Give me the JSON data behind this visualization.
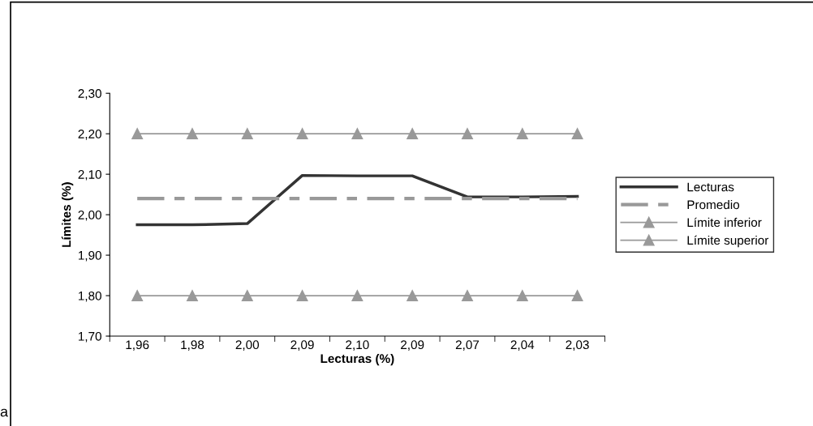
{
  "chart_data": {
    "type": "line",
    "xlabel": "Lecturas (%)",
    "ylabel": "Límites (%)",
    "categories": [
      "1,96",
      "1,98",
      "2,00",
      "2,09",
      "2,10",
      "2,09",
      "2,07",
      "2,04",
      "2,03"
    ],
    "series": [
      {
        "name": "Lecturas",
        "color": "#333333",
        "line_style": "solid",
        "marker": "none",
        "values": [
          1.975,
          1.975,
          1.978,
          2.097,
          2.096,
          2.096,
          2.044,
          2.044,
          2.045
        ]
      },
      {
        "name": "Promedio",
        "color": "#999999",
        "line_style": "dashed",
        "marker": "none",
        "values": [
          2.04,
          2.04,
          2.04,
          2.04,
          2.04,
          2.04,
          2.04,
          2.04,
          2.04
        ]
      },
      {
        "name": "Límite inferior",
        "color": "#999999",
        "line_style": "solid",
        "marker": "triangle",
        "values": [
          1.8,
          1.8,
          1.8,
          1.8,
          1.8,
          1.8,
          1.8,
          1.8,
          1.8
        ]
      },
      {
        "name": "Límite superior",
        "color": "#999999",
        "line_style": "solid",
        "marker": "triangle",
        "values": [
          2.2,
          2.2,
          2.2,
          2.2,
          2.2,
          2.2,
          2.2,
          2.2,
          2.2
        ]
      }
    ],
    "ylim": [
      1.7,
      2.3
    ],
    "yticks": [
      {
        "value": 1.7,
        "label": "1,70"
      },
      {
        "value": 1.8,
        "label": "1,80"
      },
      {
        "value": 1.9,
        "label": "1,90"
      },
      {
        "value": 2.0,
        "label": "2,00"
      },
      {
        "value": 2.1,
        "label": "2,10"
      },
      {
        "value": 2.2,
        "label": "2,20"
      },
      {
        "value": 2.3,
        "label": "2,30"
      }
    ],
    "grid": false,
    "legend": "right",
    "annotations": [
      "a"
    ]
  }
}
